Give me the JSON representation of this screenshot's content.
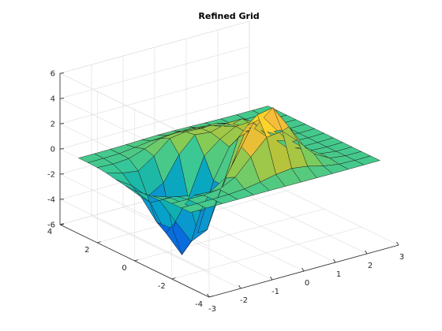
{
  "chart_data": {
    "type": "surface",
    "title": "Refined Grid",
    "xlabel": "",
    "ylabel": "",
    "zlabel": "",
    "grid": true,
    "colormap": "parula",
    "function": "peaks",
    "x_range": [
      -3,
      3
    ],
    "y_range": [
      -4,
      4
    ],
    "z_range": [
      -6,
      6
    ],
    "x_ticks": [
      -3,
      -2,
      -1,
      0,
      1,
      2,
      3
    ],
    "y_ticks": [
      -4,
      -2,
      0,
      2,
      4
    ],
    "z_ticks": [
      -6,
      -4,
      -2,
      0,
      2,
      4,
      6
    ],
    "x_tick_labels": [
      "-3",
      "-2",
      "-1",
      "0",
      "1",
      "2",
      "3"
    ],
    "y_tick_labels": [
      "-4",
      "-2",
      "0",
      "2",
      "4"
    ],
    "z_tick_labels": [
      "-6",
      "-4",
      "-2",
      "0",
      "2",
      "4",
      "6"
    ],
    "grid_x": [
      -3,
      -2.5,
      -2,
      -1.5,
      -1,
      -0.5,
      0,
      0.5,
      1,
      1.5,
      2,
      2.5,
      3
    ],
    "grid_y": [
      -3,
      -2.5,
      -2,
      -1.5,
      -1,
      -0.5,
      0,
      0.5,
      1,
      1.5,
      2,
      2.5,
      3
    ],
    "z_values": [
      [
        0.0001,
        0.0004,
        0.0012,
        0.0027,
        0.0041,
        0.0043,
        0.0007,
        -0.0066,
        -0.0148,
        -0.0193,
        -0.0171,
        -0.011,
        -0.0052
      ],
      [
        -0.0013,
        -0.0003,
        0.0059,
        0.0335,
        0.1227,
        0.3191,
        0.5853,
        0.7247,
        0.5558,
        0.229,
        0.0297,
        -0.0111,
        -0.0094
      ],
      [
        -0.0099,
        -0.0319,
        -0.0497,
        0.083,
        0.6955,
        1.9544,
        3.1713,
        3.3153,
        2.1707,
        0.8383,
        0.1526,
        -0.0075,
        -0.0117
      ],
      [
        -0.0487,
        -0.1729,
        -0.4063,
        -0.4984,
        0.3011,
        2.4087,
        4.5906,
        4.8218,
        2.9698,
        1.0159,
        0.1386,
        -0.0165,
        -0.0108
      ],
      [
        -0.1517,
        -0.5683,
        -1.4728,
        -2.3862,
        -1.8812,
        0.651,
        3.4306,
        3.6904,
        2.1188,
        0.582,
        0.0364,
        -0.0275,
        -0.0075
      ],
      [
        -0.3048,
        -1.2059,
        -3.1998,
        -5.1327,
        -4.5627,
        -1.364,
        2.1028,
        2.4452,
        1.2987,
        0.2749,
        -0.03,
        -0.0263,
        -0.0042
      ],
      [
        -0.4134,
        -1.706,
        -4.503,
        -6.5464,
        -5.144,
        -1.35,
        0.981,
        1.853,
        1.63,
        0.46,
        0.03,
        -0.02,
        -0.003
      ],
      [
        -0.3921,
        -1.6281,
        -3.989,
        -4.8421,
        -2.7711,
        0.24,
        1.22,
        1.9,
        1.95,
        0.78,
        0.1,
        -0.011,
        -0.002
      ],
      [
        -0.272,
        -1.092,
        -2.287,
        -1.578,
        0.33,
        1.56,
        1.42,
        1.78,
        1.8,
        0.74,
        0.11,
        -0.006,
        -0.001
      ],
      [
        -0.129,
        -0.459,
        -0.634,
        0.198,
        1.255,
        1.447,
        1.36,
        1.43,
        1.05,
        0.37,
        0.05,
        -0.003,
        -0.0005
      ],
      [
        -0.039,
        -0.108,
        -0.012,
        0.412,
        0.887,
        1.031,
        1.02,
        0.88,
        0.49,
        0.13,
        0.012,
        -0.001,
        -0.0002
      ],
      [
        -0.007,
        -0.012,
        0.03,
        0.18,
        0.34,
        0.43,
        0.42,
        0.33,
        0.17,
        0.04,
        0.003,
        -0.0003,
        -0.0001
      ],
      [
        0.0,
        0.001,
        0.007,
        0.03,
        0.07,
        0.098,
        0.095,
        0.07,
        0.035,
        0.01,
        0.001,
        0.0,
        0.0
      ]
    ]
  }
}
